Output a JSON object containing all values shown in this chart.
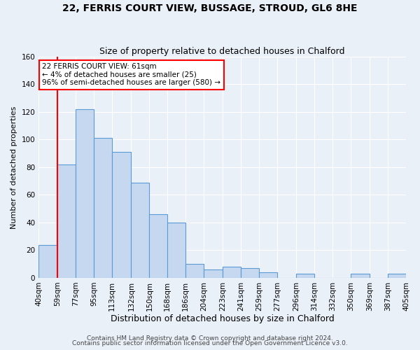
{
  "title1": "22, FERRIS COURT VIEW, BUSSAGE, STROUD, GL6 8HE",
  "title2": "Size of property relative to detached houses in Chalford",
  "xlabel": "Distribution of detached houses by size in Chalford",
  "ylabel": "Number of detached properties",
  "bin_edges": [
    40,
    59,
    77,
    95,
    113,
    132,
    150,
    168,
    186,
    204,
    223,
    241,
    259,
    277,
    296,
    314,
    332,
    350,
    369,
    387,
    405
  ],
  "bin_labels": [
    "40sqm",
    "59sqm",
    "77sqm",
    "95sqm",
    "113sqm",
    "132sqm",
    "150sqm",
    "168sqm",
    "186sqm",
    "204sqm",
    "223sqm",
    "241sqm",
    "259sqm",
    "277sqm",
    "296sqm",
    "314sqm",
    "332sqm",
    "350sqm",
    "369sqm",
    "387sqm",
    "405sqm"
  ],
  "counts": [
    24,
    82,
    122,
    101,
    91,
    69,
    46,
    40,
    10,
    6,
    8,
    7,
    4,
    0,
    3,
    0,
    0,
    3,
    0,
    3
  ],
  "bar_fill": "#c5d8f0",
  "bar_edge": "#5b9bd5",
  "background": "#eaf0f8",
  "ylim": [
    0,
    160
  ],
  "yticks": [
    0,
    20,
    40,
    60,
    80,
    100,
    120,
    140,
    160
  ],
  "red_line_x": 59,
  "annotation_line1": "22 FERRIS COURT VIEW: 61sqm",
  "annotation_line2": "← 4% of detached houses are smaller (25)",
  "annotation_line3": "96% of semi-detached houses are larger (580) →",
  "footer1": "Contains HM Land Registry data © Crown copyright and database right 2024.",
  "footer2": "Contains public sector information licensed under the Open Government Licence v3.0.",
  "title1_fontsize": 10,
  "title2_fontsize": 9,
  "ylabel_fontsize": 8,
  "xlabel_fontsize": 9,
  "tick_fontsize": 7.5,
  "footer_fontsize": 6.5
}
